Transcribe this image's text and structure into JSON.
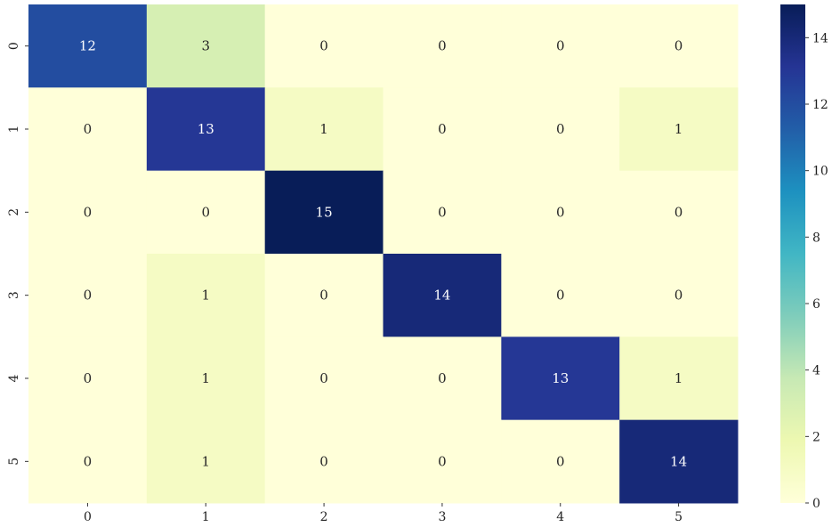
{
  "chart_data": {
    "type": "heatmap",
    "title": "",
    "xlabel": "",
    "ylabel": "",
    "x_categories": [
      "0",
      "1",
      "2",
      "3",
      "4",
      "5"
    ],
    "y_categories": [
      "0",
      "1",
      "2",
      "3",
      "4",
      "5"
    ],
    "values": [
      [
        12,
        3,
        0,
        0,
        0,
        0
      ],
      [
        0,
        13,
        1,
        0,
        0,
        1
      ],
      [
        0,
        0,
        15,
        0,
        0,
        0
      ],
      [
        0,
        1,
        0,
        14,
        0,
        0
      ],
      [
        0,
        1,
        0,
        0,
        13,
        1
      ],
      [
        0,
        1,
        0,
        0,
        0,
        14
      ]
    ],
    "colorbar": {
      "min": 0,
      "max": 15,
      "ticks": [
        0,
        2,
        4,
        6,
        8,
        10,
        12,
        14
      ],
      "colormap": "YlGnBu"
    },
    "annotations": true,
    "colors": {
      "low": "#ffffd9",
      "high": "#081d58",
      "text_dark": "#262626",
      "text_light": "#ffffff"
    }
  }
}
